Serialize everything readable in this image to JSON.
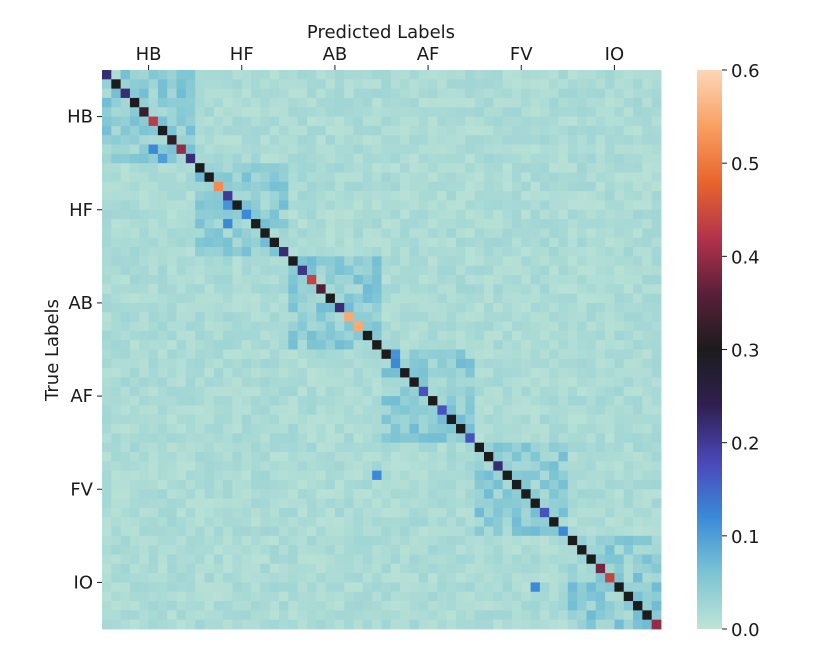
{
  "chart_data": {
    "type": "heatmap",
    "title": "",
    "xlabel": "Predicted Labels",
    "ylabel": "True Labels",
    "x_tick_labels": [
      "HB",
      "HF",
      "AB",
      "AF",
      "FV",
      "IO"
    ],
    "y_tick_labels": [
      "HB",
      "HF",
      "AB",
      "AF",
      "FV",
      "IO"
    ],
    "x_axis_position": "top",
    "n_classes": 60,
    "group_size": 10,
    "value_range": [
      0.0,
      0.6
    ],
    "colorbar": {
      "position": "right",
      "ticks": [
        0.0,
        0.1,
        0.2,
        0.3,
        0.4,
        0.5,
        0.6
      ],
      "tick_labels": [
        "0.0",
        "0.1",
        "0.2",
        "0.3",
        "0.4",
        "0.5",
        "0.6"
      ],
      "colormap": "icefire",
      "stops": [
        "#bfe4d6",
        "#7cc4d4",
        "#3a8ad9",
        "#4a47b8",
        "#2f2050",
        "#1c1c1c",
        "#5a1f3a",
        "#b3334a",
        "#e8652d",
        "#f9a062",
        "#fdd6b8"
      ]
    },
    "diagonal_values": [
      0.22,
      0.3,
      0.22,
      0.3,
      0.33,
      0.43,
      0.3,
      0.32,
      0.4,
      0.22,
      0.3,
      0.3,
      0.52,
      0.2,
      0.3,
      0.12,
      0.3,
      0.3,
      0.3,
      0.22,
      0.3,
      0.21,
      0.44,
      0.35,
      0.3,
      0.22,
      0.55,
      0.46,
      0.3,
      0.3,
      0.3,
      0.12,
      0.3,
      0.3,
      0.17,
      0.3,
      0.17,
      0.3,
      0.3,
      0.17,
      0.3,
      0.3,
      0.22,
      0.3,
      0.3,
      0.3,
      0.3,
      0.17,
      0.3,
      0.12,
      0.3,
      0.3,
      0.3,
      0.38,
      0.44,
      0.3,
      0.3,
      0.3,
      0.3,
      0.4
    ],
    "off_diagonal_level": 0.02,
    "in_group_off_diagonal_level": 0.05,
    "notable_off_diagonal_cells": [
      {
        "row": 8,
        "col": 5,
        "value": 0.12
      },
      {
        "row": 9,
        "col": 6,
        "value": 0.1
      },
      {
        "row": 14,
        "col": 13,
        "value": 0.11
      },
      {
        "row": 16,
        "col": 13,
        "value": 0.12
      },
      {
        "row": 27,
        "col": 27,
        "value": 0.55
      },
      {
        "row": 30,
        "col": 31,
        "value": 0.11
      },
      {
        "row": 43,
        "col": 29,
        "value": 0.12
      },
      {
        "row": 55,
        "col": 46,
        "value": 0.12
      }
    ]
  }
}
